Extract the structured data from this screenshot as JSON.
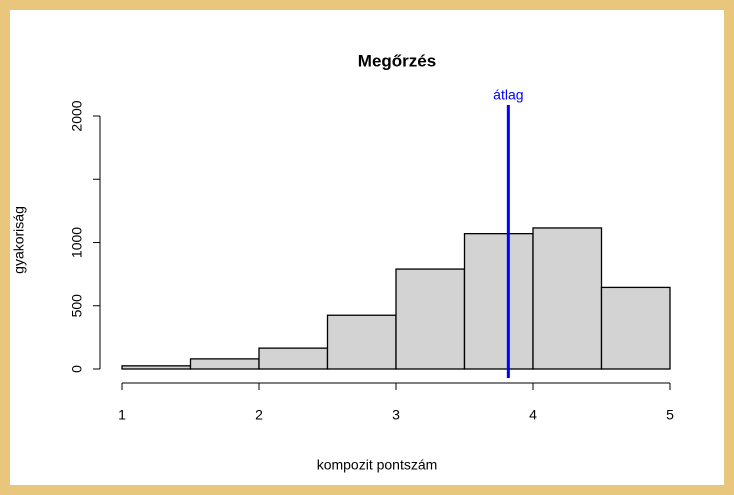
{
  "chart_data": {
    "type": "histogram",
    "title": "Megőrzés",
    "xlabel": "kompozit pontszám",
    "ylabel": "gyakoriság",
    "bins": [
      1,
      1.5,
      2,
      2.5,
      3,
      3.5,
      4,
      4.5,
      5
    ],
    "values": [
      25,
      80,
      165,
      425,
      790,
      1070,
      1115,
      645
    ],
    "color": "#d3d3d3",
    "xlim": [
      1,
      5
    ],
    "xticks": [
      1,
      2,
      3,
      4,
      5
    ],
    "ylim": [
      0,
      2000
    ],
    "yticks": [
      0,
      500,
      1000,
      {
        "value": 1500,
        "label": null
      },
      2000
    ],
    "annotations": [
      {
        "label": "átlag",
        "x": 3.82,
        "color": "#0000ff"
      }
    ]
  }
}
